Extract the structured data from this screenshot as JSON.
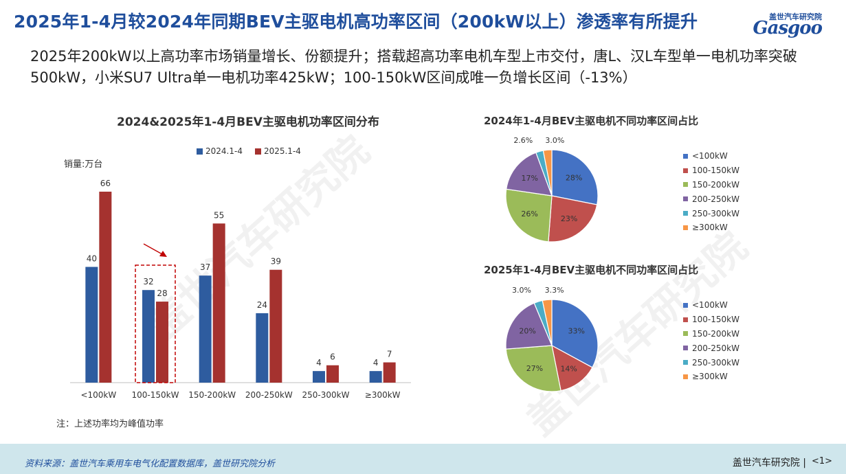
{
  "header": {
    "title": "2025年1-4月较2024年同期BEV主驱电机高功率区间（200kW以上）渗透率有所提升",
    "subtitle": "2025年200kW以上高功率市场销量增长、份额提升；搭载超高功率电机车型上市交付，唐L、汉L车型单一电机功率突破500kW，小米SU7 Ultra单一电机功率425kW；100-150kW区间成唯一负增长区间（-13%）"
  },
  "logo": {
    "cn": "盖世汽车研究院",
    "en": "Gasgoo"
  },
  "watermark": {
    "text": "盖世汽车研究院"
  },
  "colors": {
    "blue": "#2e5c9f",
    "red": "#a5322f",
    "title": "#1f4e9c",
    "footer_bg": "#cfe6ec"
  },
  "chart_data": [
    {
      "type": "bar",
      "title": "2024&2025年1-4月BEV主驱电机功率区间分布",
      "ylabel": "销量:万台",
      "categories": [
        "<100kW",
        "100-150kW",
        "150-200kW",
        "200-250kW",
        "250-300kW",
        "≥300kW"
      ],
      "series": [
        {
          "name": "2024.1-4",
          "color": "#2e5c9f",
          "values": [
            40,
            32,
            37,
            24,
            4,
            4
          ]
        },
        {
          "name": "2025.1-4",
          "color": "#a5322f",
          "values": [
            66,
            28,
            55,
            39,
            6,
            7
          ]
        }
      ],
      "ylim": [
        0,
        70
      ],
      "highlight_category": "100-150kW",
      "note": "注：上述功率均为峰值功率"
    },
    {
      "type": "pie",
      "title": "2024年1-4月BEV主驱电机不同功率区间占比",
      "labels": [
        "<100kW",
        "100-150kW",
        "150-200kW",
        "200-250kW",
        "250-300kW",
        "≥300kW"
      ],
      "values": [
        28,
        23,
        26,
        17,
        2.6,
        3.0
      ],
      "value_labels": [
        "28%",
        "23%",
        "26%",
        "17%",
        "2.6%",
        "3.0%"
      ],
      "colors": [
        "#4472c4",
        "#c0504d",
        "#9bbb59",
        "#8064a2",
        "#4bacc6",
        "#f79646"
      ]
    },
    {
      "type": "pie",
      "title": "2025年1-4月BEV主驱电机不同功率区间占比",
      "labels": [
        "<100kW",
        "100-150kW",
        "150-200kW",
        "200-250kW",
        "250-300kW",
        "≥300kW"
      ],
      "values": [
        33,
        14,
        27,
        20,
        3.0,
        3.3
      ],
      "value_labels": [
        "33%",
        "14%",
        "27%",
        "20%",
        "3.0%",
        "3.3%"
      ],
      "colors": [
        "#4472c4",
        "#c0504d",
        "#9bbb59",
        "#8064a2",
        "#4bacc6",
        "#f79646"
      ]
    }
  ],
  "footer": {
    "source": "资料来源：盖世汽车乘用车电气化配置数据库，盖世研究院分析",
    "brand": "盖世汽车研究院 |",
    "page": "<1>"
  }
}
